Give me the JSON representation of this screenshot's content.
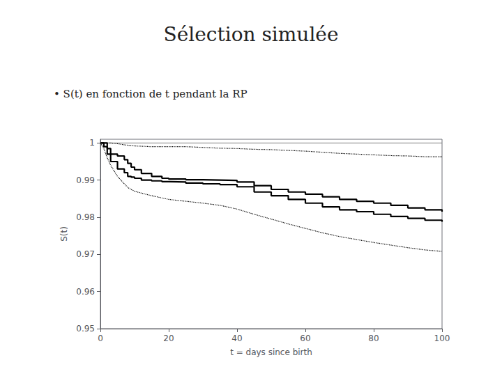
{
  "chart_data": {
    "type": "line",
    "title": "Sélection simulée",
    "subtitle": "• S(t) en fonction de t pendant la RP",
    "xlabel": "t = days since birth",
    "ylabel": "S(t)",
    "xlim": [
      0,
      100
    ],
    "ylim": [
      0.95,
      1.001
    ],
    "xticks": [
      0,
      20,
      40,
      60,
      80,
      100
    ],
    "yticks": [
      0.95,
      0.96,
      0.97,
      0.98,
      0.99,
      1
    ],
    "grid": false,
    "series": [
      {
        "type": "line",
        "color": "gray",
        "line_style": "solid",
        "x": [
          0,
          5,
          10,
          20,
          30,
          40,
          50,
          60,
          70,
          80,
          90,
          100
        ],
        "values": [
          1.0,
          1.0,
          1.0,
          1.0,
          1.0,
          1.0,
          1.0,
          1.0,
          1.0,
          1.0,
          1.0,
          1.0
        ]
      },
      {
        "type": "line",
        "color": "black",
        "line_style": "dotted",
        "x": [
          0,
          1,
          2,
          3,
          5,
          7,
          10,
          15,
          20,
          25,
          30,
          35,
          40,
          45,
          50,
          55,
          60,
          65,
          70,
          75,
          80,
          85,
          90,
          95,
          100
        ],
        "values": [
          1.0,
          1.0,
          1.0,
          1.0,
          0.9998,
          0.9995,
          0.9992,
          0.999,
          0.999,
          0.999,
          0.9988,
          0.9986,
          0.9985,
          0.9983,
          0.9982,
          0.998,
          0.9978,
          0.9975,
          0.9972,
          0.997,
          0.9968,
          0.9966,
          0.9965,
          0.9963,
          0.9963
        ]
      },
      {
        "type": "line",
        "color": "black",
        "line_style": "dotted",
        "x": [
          0,
          1,
          2,
          3,
          5,
          7,
          8,
          10,
          12,
          15,
          18,
          20,
          25,
          30,
          35,
          40,
          45,
          50,
          55,
          60,
          65,
          70,
          75,
          80,
          85,
          90,
          95,
          100
        ],
        "values": [
          1.0,
          0.9985,
          0.996,
          0.994,
          0.991,
          0.989,
          0.988,
          0.987,
          0.9865,
          0.9858,
          0.9852,
          0.9848,
          0.9843,
          0.9838,
          0.9832,
          0.9822,
          0.9808,
          0.9795,
          0.9782,
          0.977,
          0.9758,
          0.9748,
          0.974,
          0.9732,
          0.9725,
          0.9718,
          0.9712,
          0.9708
        ]
      },
      {
        "type": "step",
        "color": "black",
        "line_style": "solid",
        "x": [
          0,
          1,
          2,
          3,
          5,
          7,
          8,
          9,
          10,
          12,
          15,
          18,
          20,
          25,
          30,
          35,
          40,
          45,
          50,
          55,
          60,
          65,
          70,
          75,
          80,
          85,
          90,
          95,
          100
        ],
        "values": [
          1.0,
          1.0,
          0.9985,
          0.997,
          0.9965,
          0.9955,
          0.9945,
          0.9935,
          0.9928,
          0.9918,
          0.991,
          0.9905,
          0.9903,
          0.9901,
          0.99,
          0.9899,
          0.9895,
          0.9885,
          0.9875,
          0.9868,
          0.9862,
          0.9855,
          0.9848,
          0.9843,
          0.9838,
          0.9832,
          0.9825,
          0.982,
          0.9815
        ]
      },
      {
        "type": "step",
        "color": "black",
        "line_style": "solid",
        "x": [
          0,
          1,
          2,
          3,
          5,
          7,
          8,
          9,
          10,
          12,
          15,
          18,
          20,
          25,
          30,
          35,
          40,
          45,
          50,
          55,
          60,
          65,
          70,
          75,
          80,
          85,
          90,
          95,
          100
        ],
        "values": [
          1.0,
          0.999,
          0.997,
          0.995,
          0.993,
          0.992,
          0.991,
          0.9908,
          0.9905,
          0.99,
          0.9898,
          0.9896,
          0.9895,
          0.9892,
          0.989,
          0.9888,
          0.9882,
          0.9868,
          0.9858,
          0.9848,
          0.9838,
          0.9828,
          0.982,
          0.9815,
          0.9808,
          0.9802,
          0.9797,
          0.9792,
          0.9788
        ]
      }
    ]
  }
}
